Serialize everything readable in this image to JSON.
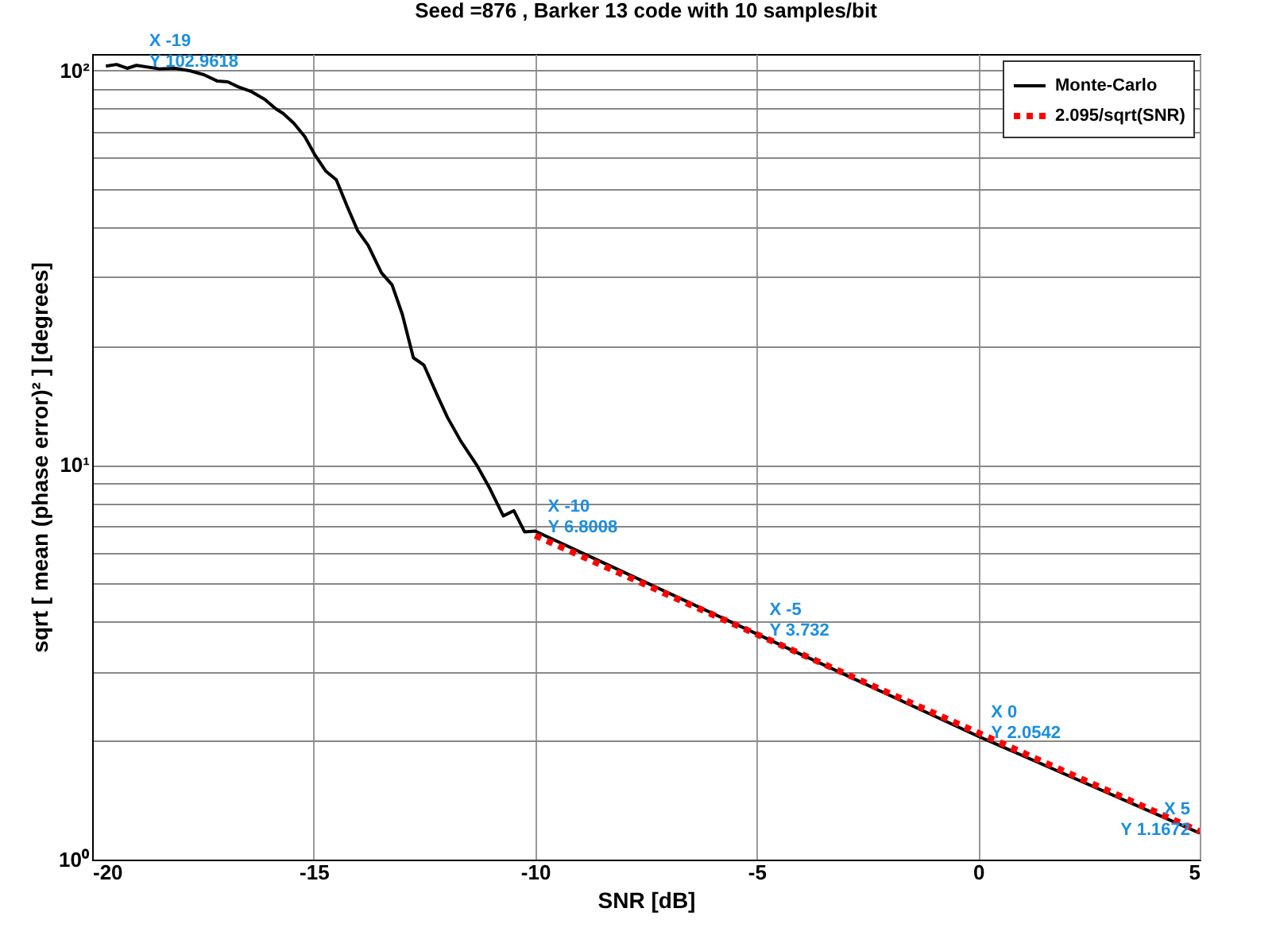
{
  "chart_data": {
    "type": "line",
    "title": "Seed =876 , Barker 13 code with 10 samples/bit",
    "xlabel": "SNR [dB]",
    "ylabel": "sqrt [ mean (phase error)² ] [degrees]",
    "series": [
      {
        "name": "Monte-Carlo",
        "color": "#000000",
        "line_style": "solid",
        "x": [
          -19.69,
          -19.45,
          -19.21,
          -19,
          -18.49,
          -18.13,
          -17.78,
          -17.48,
          -17.18,
          -16.94,
          -16.7,
          -16.4,
          -16.1,
          -15.86,
          -15.69,
          -15.45,
          -15.2,
          -14.97,
          -14.73,
          -14.49,
          -14.25,
          -14.01,
          -13.77,
          -13.47,
          -13.23,
          -13.0,
          -12.75,
          -12.51,
          -12.22,
          -11.98,
          -11.68,
          -11.32,
          -11.02,
          -10.72,
          -10.48,
          -10.24,
          -10,
          -5,
          0,
          5
        ],
        "values": [
          102.5,
          103.5,
          101.2,
          102.9618,
          100.9,
          101.2,
          99.7,
          97.5,
          94.0,
          93.5,
          90.8,
          88.3,
          84.4,
          80.0,
          77.8,
          73.5,
          67.9,
          61.0,
          55.6,
          52.8,
          45.4,
          39.3,
          36.0,
          30.7,
          28.6,
          24.1,
          18.7,
          17.9,
          15.1,
          13.2,
          11.5,
          10.0,
          8.7,
          7.43,
          7.66,
          6.77,
          6.8008,
          3.732,
          2.0542,
          1.1672
        ]
      },
      {
        "name": "2.095/sqrt(SNR)",
        "color": "#ff0000",
        "line_style": "dashed",
        "x": [
          -10,
          -5,
          0,
          5
        ],
        "values": [
          6.625,
          3.725,
          2.095,
          1.178
        ]
      }
    ],
    "annotations": [
      {
        "text": "X -19\nY 102.9618",
        "x": -19,
        "y": 102.9618
      },
      {
        "text": "X -10\nY 6.8008",
        "x": -10,
        "y": 6.8008
      },
      {
        "text": "X -5\nY 3.732",
        "x": -5,
        "y": 3.732
      },
      {
        "text": "X 0\nY 2.0542",
        "x": 0,
        "y": 2.0542
      },
      {
        "text": "X 5\nY 1.1672",
        "x": 5,
        "y": 1.1672
      }
    ],
    "xlim": [
      -20,
      5
    ],
    "xticks": [
      -20,
      -15,
      -10,
      -5,
      0,
      5
    ],
    "ylim": [
      1,
      110
    ],
    "yticks": [
      {
        "value": 1,
        "label": "10⁰"
      },
      {
        "value": 10,
        "label": "10¹"
      },
      {
        "value": 100,
        "label": "10²"
      }
    ],
    "log": "y",
    "grid": true,
    "legend": "top right"
  }
}
